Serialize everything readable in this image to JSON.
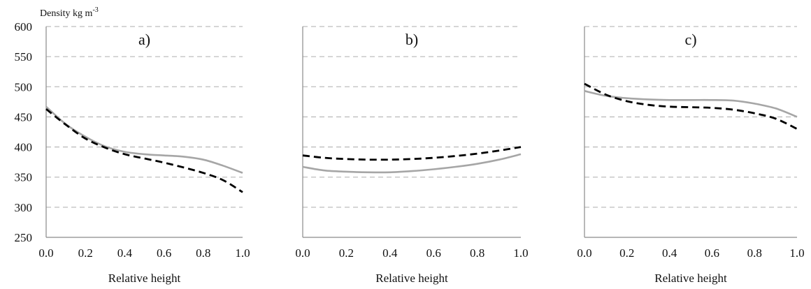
{
  "chart_data": [
    {
      "type": "line",
      "title": "a)",
      "xlabel": "Relative height",
      "ylabel": "Density kg m",
      "ylabel_superscript": "-3",
      "xlim": [
        0,
        1
      ],
      "ylim": [
        250,
        600
      ],
      "xticks": [
        "0.0",
        "0.2",
        "0.4",
        "0.6",
        "0.8",
        "1.0"
      ],
      "yticks": [
        "250",
        "300",
        "350",
        "400",
        "450",
        "500",
        "550",
        "600"
      ],
      "grid": "horizontal-dashed",
      "series": [
        {
          "style": "solid-gray",
          "color": "#a6a6a6",
          "x": [
            0,
            0.1,
            0.2,
            0.3,
            0.4,
            0.5,
            0.6,
            0.7,
            0.8,
            0.9,
            1.0
          ],
          "y": [
            467,
            438,
            417,
            401,
            392,
            388,
            386,
            384,
            379,
            369,
            357
          ]
        },
        {
          "style": "dashed-black",
          "color": "#000000",
          "x": [
            0,
            0.1,
            0.2,
            0.3,
            0.4,
            0.5,
            0.6,
            0.7,
            0.8,
            0.9,
            1.0
          ],
          "y": [
            463,
            437,
            414,
            399,
            388,
            381,
            374,
            366,
            357,
            345,
            325
          ]
        }
      ]
    },
    {
      "type": "line",
      "title": "b)",
      "xlabel": "Relative height",
      "xlim": [
        0,
        1
      ],
      "ylim": [
        250,
        600
      ],
      "xticks": [
        "0.0",
        "0.2",
        "0.4",
        "0.6",
        "0.8",
        "1.0"
      ],
      "grid": "horizontal-dashed",
      "series": [
        {
          "style": "solid-gray",
          "color": "#a6a6a6",
          "x": [
            0,
            0.1,
            0.2,
            0.3,
            0.4,
            0.5,
            0.6,
            0.7,
            0.8,
            0.9,
            1.0
          ],
          "y": [
            367,
            361,
            359,
            358,
            358,
            360,
            363,
            367,
            372,
            379,
            388
          ]
        },
        {
          "style": "dashed-black",
          "color": "#000000",
          "x": [
            0,
            0.1,
            0.2,
            0.3,
            0.4,
            0.5,
            0.6,
            0.7,
            0.8,
            0.9,
            1.0
          ],
          "y": [
            386,
            382,
            380,
            379,
            379,
            380,
            382,
            385,
            389,
            394,
            400
          ]
        }
      ]
    },
    {
      "type": "line",
      "title": "c)",
      "xlabel": "Relative height",
      "xlim": [
        0,
        1
      ],
      "ylim": [
        250,
        600
      ],
      "xticks": [
        "0.0",
        "0.2",
        "0.4",
        "0.6",
        "0.8",
        "1.0"
      ],
      "grid": "horizontal-dashed",
      "series": [
        {
          "style": "solid-gray",
          "color": "#a6a6a6",
          "x": [
            0,
            0.1,
            0.2,
            0.3,
            0.4,
            0.5,
            0.6,
            0.7,
            0.8,
            0.9,
            1.0
          ],
          "y": [
            493,
            485,
            481,
            479,
            478,
            478,
            478,
            477,
            472,
            464,
            450
          ]
        },
        {
          "style": "dashed-black",
          "color": "#000000",
          "x": [
            0,
            0.1,
            0.2,
            0.3,
            0.4,
            0.5,
            0.6,
            0.7,
            0.8,
            0.9,
            1.0
          ],
          "y": [
            505,
            487,
            476,
            470,
            467,
            466,
            465,
            462,
            456,
            447,
            430
          ]
        }
      ]
    }
  ]
}
